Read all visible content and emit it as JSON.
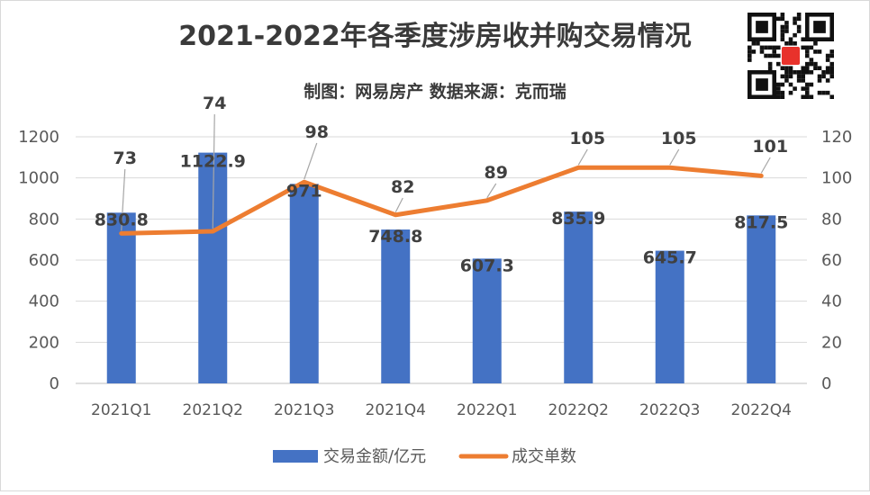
{
  "chart_data": {
    "type": "bar",
    "title": "2021-2022年各季度涉房收并购交易情况",
    "subtitle": "制图：网易房产   数据来源：克而瑞",
    "categories": [
      "2021Q1",
      "2021Q2",
      "2021Q3",
      "2021Q4",
      "2022Q1",
      "2022Q2",
      "2022Q3",
      "2022Q4"
    ],
    "series": [
      {
        "name": "交易金额/亿元",
        "type": "bar",
        "axis": "left",
        "color": "#4472C4",
        "values": [
          830.8,
          1122.9,
          971,
          748.8,
          607.3,
          835.9,
          645.7,
          817.5
        ],
        "labels": [
          "830.8",
          "1122.9",
          "971",
          "748.8",
          "607.3",
          "835.9",
          "645.7",
          "817.5"
        ]
      },
      {
        "name": "成交单数",
        "type": "line",
        "axis": "right",
        "color": "#ED7D31",
        "values": [
          73,
          74,
          98,
          82,
          89,
          105,
          105,
          101
        ],
        "labels": [
          "73",
          "74",
          "98",
          "82",
          "89",
          "105",
          "105",
          "101"
        ]
      }
    ],
    "y_left": {
      "min": 0,
      "max": 1200,
      "ticks": [
        "0",
        "200",
        "400",
        "600",
        "800",
        "1000",
        "1200"
      ]
    },
    "y_right": {
      "min": 0,
      "max": 120,
      "ticks": [
        "0",
        "20",
        "40",
        "60",
        "80",
        "100",
        "120"
      ]
    },
    "grid": true,
    "legend_position": "bottom"
  },
  "qr_code": {
    "icon": "qr-code-icon",
    "badge_color": "#E8322B"
  }
}
